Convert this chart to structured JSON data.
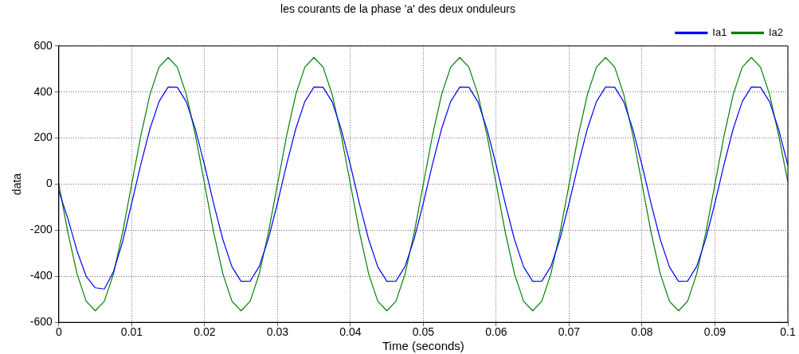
{
  "chart_data": {
    "type": "line",
    "title": "les courants de la phase 'a' des deux onduleurs",
    "xlabel": "Time (seconds)",
    "ylabel": "data",
    "x": [
      0,
      0.00125,
      0.0025,
      0.00375,
      0.005,
      0.00625,
      0.0075,
      0.00875,
      0.01,
      0.01125,
      0.0125,
      0.01375,
      0.015,
      0.01625,
      0.0175,
      0.01875,
      0.02,
      0.02125,
      0.0225,
      0.02375,
      0.025,
      0.02625,
      0.0275,
      0.02875,
      0.03,
      0.03125,
      0.0325,
      0.03375,
      0.035,
      0.03625,
      0.0375,
      0.03875,
      0.04,
      0.04125,
      0.0425,
      0.04375,
      0.045,
      0.04625,
      0.0475,
      0.04875,
      0.05,
      0.05125,
      0.0525,
      0.05375,
      0.055,
      0.05625,
      0.0575,
      0.05875,
      0.06,
      0.06125,
      0.0625,
      0.06375,
      0.065,
      0.06625,
      0.0675,
      0.06875,
      0.07,
      0.07125,
      0.0725,
      0.07375,
      0.075,
      0.07625,
      0.0775,
      0.07875,
      0.08,
      0.08125,
      0.0825,
      0.08375,
      0.085,
      0.08625,
      0.0875,
      0.08875,
      0.09,
      0.09125,
      0.0925,
      0.09375,
      0.095,
      0.09625,
      0.0975,
      0.09875,
      0.1
    ],
    "series": [
      {
        "name": "Ia1",
        "color": "#0000ff",
        "values": [
          -30,
          -150,
          -290,
          -400,
          -450,
          -455,
          -380,
          -250,
          -82,
          86,
          240,
          359,
          422,
          421,
          357,
          237,
          82,
          -86,
          -240,
          -359,
          -422,
          -421,
          -357,
          -237,
          -82,
          86,
          240,
          359,
          422,
          421,
          357,
          237,
          82,
          -86,
          -240,
          -359,
          -422,
          -421,
          -357,
          -237,
          -82,
          86,
          240,
          359,
          422,
          421,
          357,
          237,
          82,
          -86,
          -240,
          -359,
          -422,
          -421,
          -357,
          -237,
          -82,
          86,
          240,
          359,
          422,
          421,
          357,
          237,
          82,
          -86,
          -240,
          -359,
          -422,
          -421,
          -357,
          -237,
          -82,
          86,
          240,
          359,
          422,
          421,
          357,
          237,
          82
        ]
      },
      {
        "name": "Ia2",
        "color": "#008000",
        "values": [
          0,
          -210,
          -389,
          -508,
          -550,
          -508,
          -389,
          -210,
          0,
          210,
          389,
          508,
          550,
          508,
          389,
          210,
          0,
          -210,
          -389,
          -508,
          -550,
          -508,
          -389,
          -210,
          0,
          210,
          389,
          508,
          550,
          508,
          389,
          210,
          0,
          -210,
          -389,
          -508,
          -550,
          -508,
          -389,
          -210,
          0,
          210,
          389,
          508,
          550,
          508,
          389,
          210,
          0,
          -210,
          -389,
          -508,
          -550,
          -508,
          -389,
          -210,
          0,
          210,
          389,
          508,
          550,
          508,
          389,
          210,
          0,
          -210,
          -389,
          -508,
          -550,
          -508,
          -389,
          -210,
          0,
          210,
          389,
          508,
          550,
          508,
          389,
          210,
          10
        ]
      }
    ],
    "xlim": [
      0,
      0.1
    ],
    "xticks": [
      0,
      0.01,
      0.02,
      0.03,
      0.04,
      0.05,
      0.06,
      0.07,
      0.08,
      0.09,
      0.1
    ],
    "ylim": [
      -600,
      600
    ],
    "yticks": [
      -600,
      -400,
      -200,
      0,
      200,
      400,
      600
    ],
    "grid": true,
    "legend": "top right",
    "marker": "none",
    "line_style": "solid"
  }
}
